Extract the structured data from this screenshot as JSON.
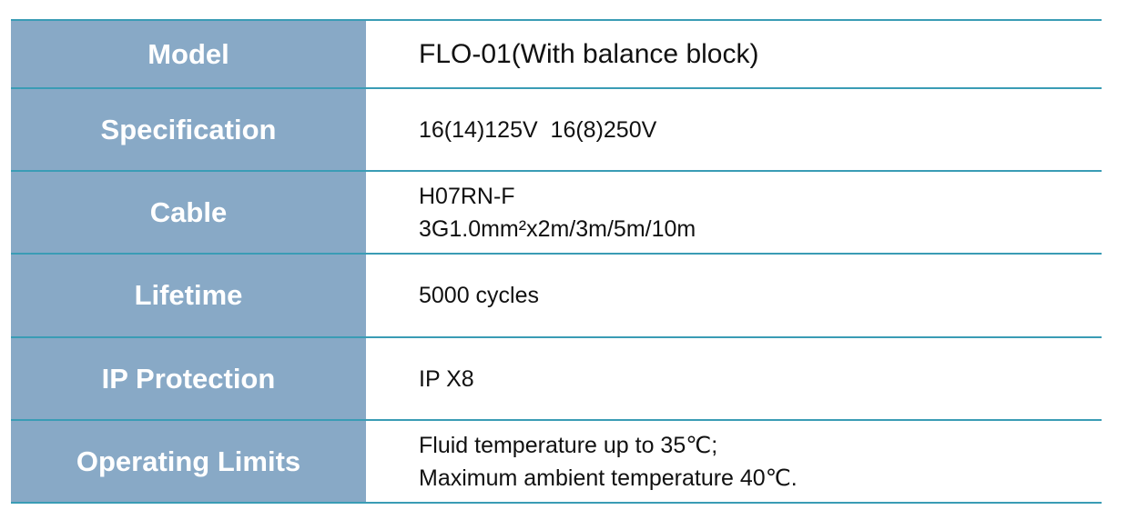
{
  "table": {
    "rows": [
      {
        "label": "Model",
        "lines": [
          "FLO-01(With balance block)"
        ]
      },
      {
        "label": "Specification",
        "lines": [
          "16(14)125V  16(8)250V"
        ]
      },
      {
        "label": "Cable",
        "lines": [
          "H07RN-F",
          "3G1.0mm²x2m/3m/5m/10m"
        ]
      },
      {
        "label": "Lifetime",
        "lines": [
          "5000 cycles"
        ]
      },
      {
        "label": "IP Protection",
        "lines": [
          "IP X8"
        ]
      },
      {
        "label": "Operating Limits",
        "lines": [
          "Fluid temperature up to 35℃;",
          "Maximum ambient temperature 40℃."
        ]
      }
    ]
  },
  "colors": {
    "label_background": "#88a9c6",
    "rule_line": "#3a9cb5",
    "label_text": "#ffffff",
    "value_text": "#111111"
  }
}
